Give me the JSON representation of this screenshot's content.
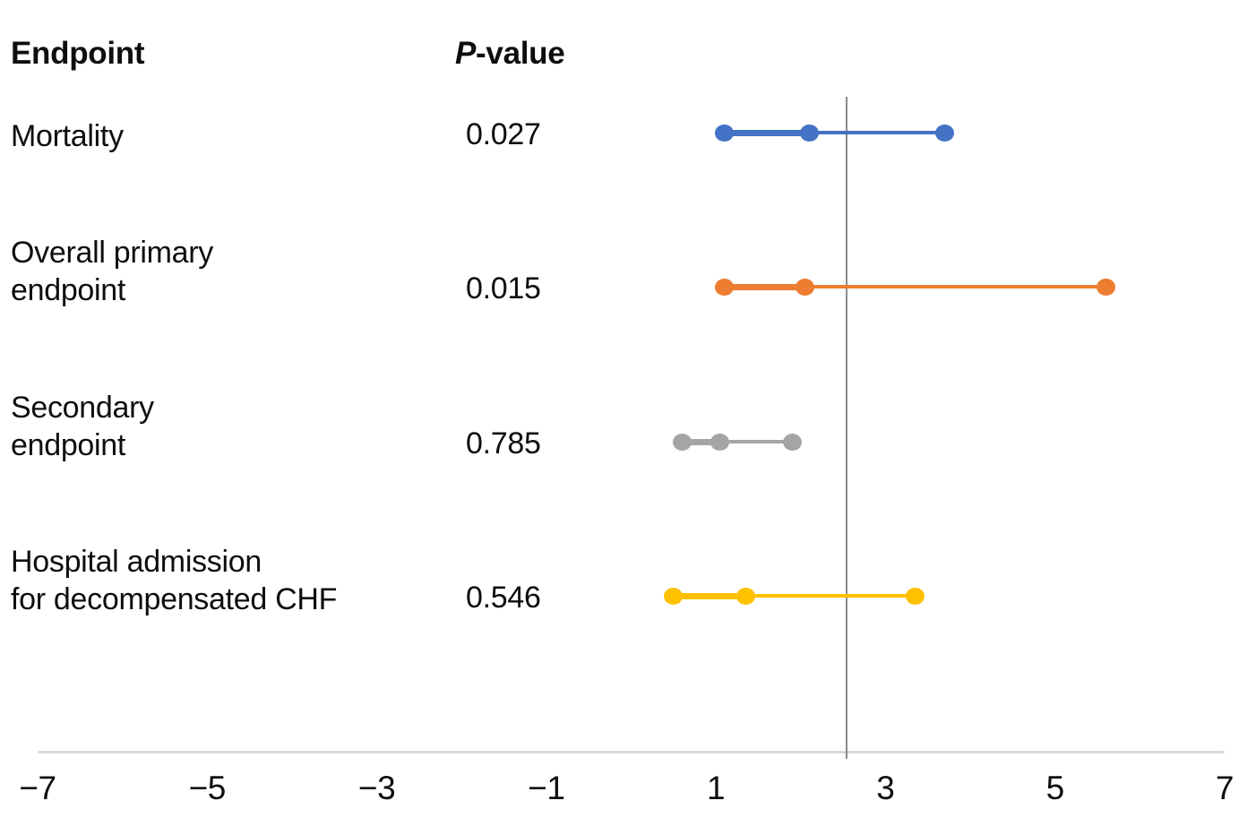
{
  "header": {
    "endpoint": "Endpoint",
    "p_italic": "P",
    "p_rest": "-value"
  },
  "chart_data": {
    "type": "scatter",
    "subtype": "forest-plot-hazard-ratio-ci",
    "title": "",
    "xlabel": "",
    "ylabel": "",
    "x_axis": {
      "min": -7,
      "max": 7,
      "tick_values": [
        -7,
        -5,
        -3,
        -1,
        1,
        3,
        5,
        7
      ],
      "tick_labels": [
        "−7",
        "−5",
        "−3",
        "−1",
        "1",
        "3",
        "5",
        "7"
      ],
      "grid": false,
      "axis_color": "#D9D9D9",
      "tick_label_color": "#0e0e0e"
    },
    "reference_line_x": 2.54,
    "reference_line_color": "#8C8C8C",
    "legend": "none",
    "series": [
      {
        "endpoint": "Mortality",
        "label_lines": [
          "Mortality"
        ],
        "p_value": "0.027",
        "color": "#4472C4",
        "ci_low": 1.1,
        "estimate": 2.1,
        "ci_high": 3.7
      },
      {
        "endpoint": "Overall primary endpoint",
        "label_lines": [
          "Overall primary",
          "endpoint"
        ],
        "p_value": "0.015",
        "color": "#ED7D31",
        "ci_low": 1.1,
        "estimate": 2.05,
        "ci_high": 5.6
      },
      {
        "endpoint": "Secondary endpoint",
        "label_lines": [
          "Secondary",
          "endpoint"
        ],
        "p_value": "0.785",
        "color": "#A5A5A5",
        "ci_low": 0.6,
        "estimate": 1.05,
        "ci_high": 1.9
      },
      {
        "endpoint": "Hospital admission for decompensated CHF",
        "label_lines": [
          "Hospital admission",
          "for decompensated CHF"
        ],
        "p_value": "0.546",
        "color": "#FFC000",
        "ci_low": 0.5,
        "estimate": 1.35,
        "ci_high": 3.35
      }
    ]
  }
}
